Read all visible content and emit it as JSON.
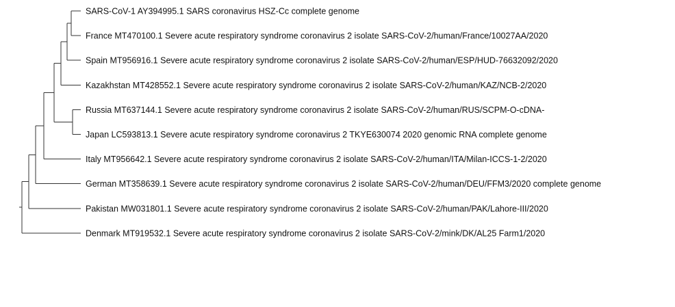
{
  "tree": {
    "leaves": [
      {
        "id": "l1",
        "label": "SARS-CoV-1 AY394995.1 SARS coronavirus HSZ-Cc complete genome"
      },
      {
        "id": "l2",
        "label": "France MT470100.1 Severe acute respiratory syndrome coronavirus 2 isolate SARS-CoV-2/human/France/10027AA/2020"
      },
      {
        "id": "l3",
        "label": "Spain MT956916.1 Severe acute respiratory syndrome coronavirus 2 isolate SARS-CoV-2/human/ESP/HUD-76632092/2020"
      },
      {
        "id": "l4",
        "label": "Kazakhstan MT428552.1 Severe acute respiratory syndrome coronavirus 2 isolate SARS-CoV-2/human/KAZ/NCB-2/2020"
      },
      {
        "id": "l5",
        "label": "Russia MT637144.1 Severe acute respiratory syndrome coronavirus 2 isolate SARS-CoV-2/human/RUS/SCPM-O-cDNA-"
      },
      {
        "id": "l6",
        "label": "Japan LC593813.1 Severe acute respiratory syndrome coronavirus 2 TKYE630074 2020 genomic RNA complete genome"
      },
      {
        "id": "l7",
        "label": "Italy MT956642.1 Severe acute respiratory syndrome coronavirus 2 isolate SARS-CoV-2/human/ITA/Milan-ICCS-1-2/2020"
      },
      {
        "id": "l8",
        "label": "German MT358639.1 Severe acute respiratory syndrome coronavirus 2 isolate SARS-CoV-2/human/DEU/FFM3/2020 complete genome"
      },
      {
        "id": "l9",
        "label": "Pakistan MW031801.1 Severe acute respiratory syndrome coronavirus 2 isolate SARS-CoV-2/human/PAK/Lahore-III/2020"
      },
      {
        "id": "l10",
        "label": "Denmark MT919532.1 Severe acute respiratory syndrome coronavirus 2 isolate SARS-CoV-2/mink/DK/AL25 Farm1/2020"
      }
    ],
    "topology": [
      "l10",
      [
        "l9",
        [
          "l8",
          [
            "l7",
            [
              [
                "l4",
                [
                  [
                    "l1",
                    "l2"
                  ],
                  "l3"
                ]
              ],
              [
                "l5",
                "l6"
              ]
            ]
          ]
        ]
      ]
    ],
    "line_color": "#333333",
    "text_color": "#111111"
  }
}
